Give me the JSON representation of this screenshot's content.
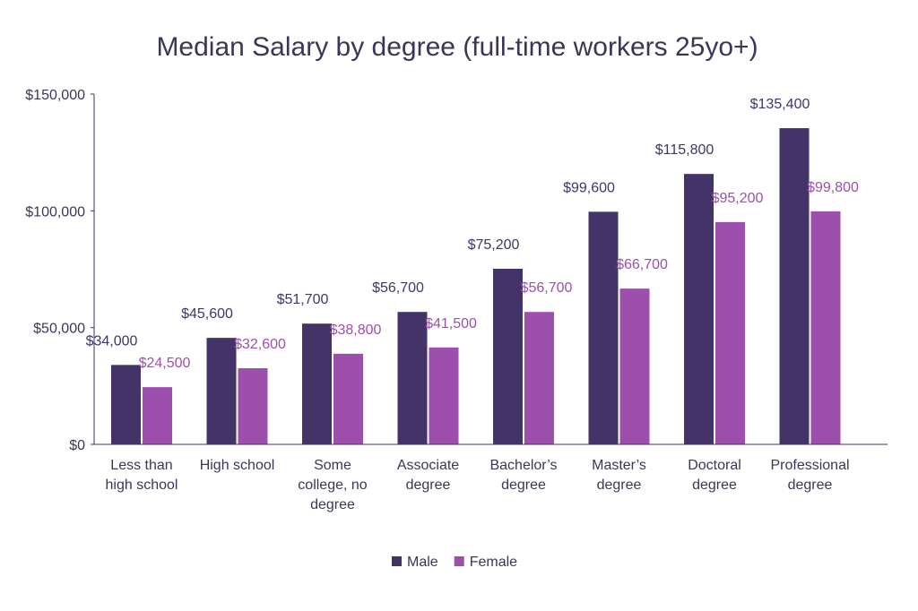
{
  "chart_data": {
    "type": "bar",
    "title": "Median Salary by degree (full-time workers 25yo+)",
    "categories": [
      [
        "Less than",
        "high school"
      ],
      [
        "High school"
      ],
      [
        "Some",
        "college, no",
        "degree"
      ],
      [
        "Associate",
        "degree"
      ],
      [
        "Bachelor’s",
        "degree"
      ],
      [
        "Master’s",
        "degree"
      ],
      [
        "Doctoral",
        "degree"
      ],
      [
        "Professional",
        "degree"
      ]
    ],
    "series": [
      {
        "name": "Male",
        "color": "#433368",
        "values": [
          34000,
          45600,
          51700,
          56700,
          75200,
          99600,
          115800,
          135400
        ],
        "labels": [
          "$34,000",
          "$45,600",
          "$51,700",
          "$56,700",
          "$75,200",
          "$99,600",
          "$115,800",
          "$135,400"
        ]
      },
      {
        "name": "Female",
        "color": "#9c4fac",
        "values": [
          24500,
          32600,
          38800,
          41500,
          56700,
          66700,
          95200,
          99800
        ],
        "labels": [
          "$24,500",
          "$32,600",
          "$38,800",
          "$41,500",
          "$56,700",
          "$66,700",
          "$95,200",
          "$99,800"
        ]
      }
    ],
    "ylim": [
      0,
      150000
    ],
    "yticks": [
      0,
      50000,
      100000,
      150000
    ],
    "ytick_labels": [
      "$0",
      "$50,000",
      "$100,000",
      "$150,000"
    ],
    "xlabel": "",
    "ylabel": "",
    "grid": false,
    "legend": "bottom-center"
  }
}
